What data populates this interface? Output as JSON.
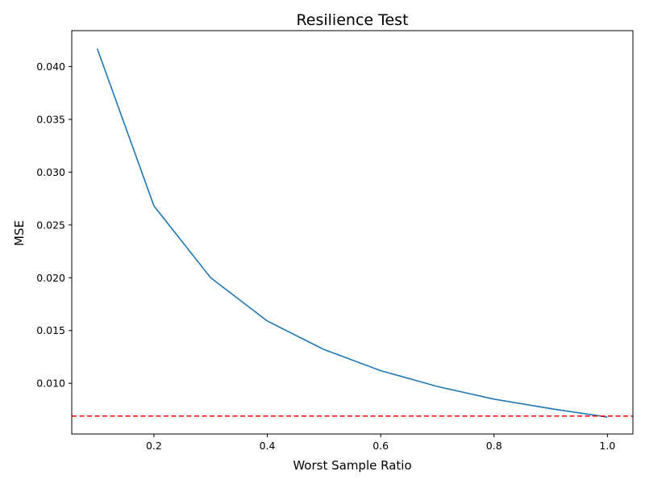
{
  "chart_data": {
    "type": "line",
    "title": "Resilience Test",
    "xlabel": "Worst Sample Ratio",
    "ylabel": "MSE",
    "xlim": [
      0.055,
      1.045
    ],
    "ylim": [
      0.0052,
      0.0434
    ],
    "xticks": [
      0.2,
      0.4,
      0.6,
      0.8,
      1.0
    ],
    "xtick_labels": [
      "0.2",
      "0.4",
      "0.6",
      "0.8",
      "1.0"
    ],
    "yticks": [
      0.01,
      0.015,
      0.02,
      0.025,
      0.03,
      0.035,
      0.04
    ],
    "ytick_labels": [
      "0.010",
      "0.015",
      "0.020",
      "0.025",
      "0.030",
      "0.035",
      "0.040"
    ],
    "grid": false,
    "series": [
      {
        "x": [
          0.1,
          0.2,
          0.3,
          0.4,
          0.5,
          0.6,
          0.7,
          0.8,
          0.9,
          1.0
        ],
        "values": [
          0.0417,
          0.0268,
          0.02,
          0.0159,
          0.0132,
          0.0112,
          0.0097,
          0.0085,
          0.0076,
          0.0068
        ],
        "color": "#1f77b4"
      }
    ],
    "reference_line": {
      "y": 0.0069,
      "color": "#ff0000",
      "style": "dashed"
    }
  }
}
